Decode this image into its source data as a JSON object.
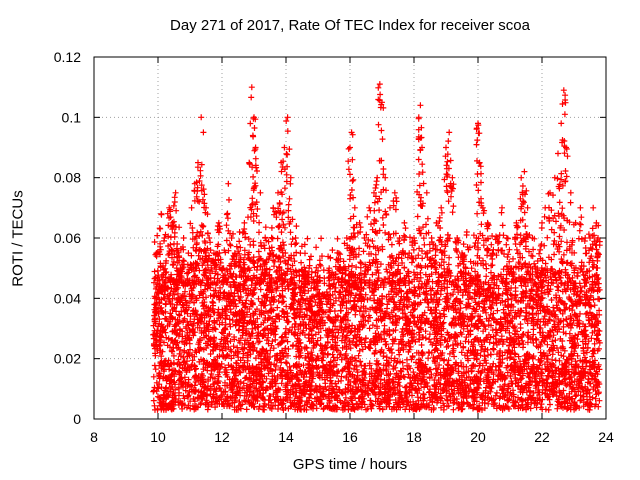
{
  "chart_data": {
    "type": "scatter",
    "title": "Day 271 of 2017, Rate Of TEC Index for receiver scoa",
    "xlabel": "GPS time / hours",
    "ylabel": "ROTI / TECUs",
    "xlim": [
      8,
      24
    ],
    "ylim": [
      0,
      0.12
    ],
    "xticks": [
      "8",
      "10",
      "12",
      "14",
      "16",
      "18",
      "20",
      "22",
      "24"
    ],
    "yticks": [
      "0",
      "0.02",
      "0.04",
      "0.06",
      "0.08",
      "0.1",
      "0.12"
    ],
    "grid": true,
    "marker": "+",
    "color": "#ff0000",
    "series": [
      {
        "x": [
          9.9,
          9.95,
          10.0,
          10.1,
          10.2,
          10.35,
          10.45,
          10.55,
          10.6,
          10.7,
          10.8,
          10.95,
          11.05,
          11.15,
          11.25,
          11.35,
          11.42,
          11.5,
          11.6,
          11.75,
          11.9,
          12.05,
          12.2,
          12.3,
          12.4,
          12.55,
          12.7,
          12.85,
          12.93,
          13.0,
          13.05,
          13.2,
          13.35,
          13.5,
          13.6,
          13.75,
          13.85,
          13.95,
          14.05,
          14.15,
          14.3,
          14.45,
          14.6,
          14.75,
          14.9,
          15.05,
          15.2,
          15.35,
          15.5,
          15.65,
          15.8,
          15.9,
          16.0,
          16.05,
          16.15,
          16.3,
          16.45,
          16.6,
          16.75,
          16.85,
          16.93,
          17.0,
          17.1,
          17.25,
          17.4,
          17.55,
          17.7,
          17.85,
          18.0,
          18.15,
          18.2,
          18.25,
          18.4,
          18.55,
          18.7,
          18.85,
          19.0,
          19.1,
          19.2,
          19.35,
          19.5,
          19.65,
          19.8,
          19.95,
          20.0,
          20.05,
          20.15,
          20.3,
          20.45,
          20.6,
          20.75,
          20.9,
          21.05,
          21.2,
          21.35,
          21.45,
          21.55,
          21.7,
          21.85,
          22.0,
          22.1,
          22.25,
          22.4,
          22.5,
          22.6,
          22.68,
          22.75,
          22.9,
          23.05,
          23.2,
          23.35,
          23.5,
          23.6,
          23.7,
          23.75
        ],
        "y": [
          0.04,
          0.055,
          0.045,
          0.068,
          0.06,
          0.07,
          0.065,
          0.075,
          0.058,
          0.05,
          0.06,
          0.055,
          0.07,
          0.078,
          0.085,
          0.1,
          0.095,
          0.07,
          0.06,
          0.055,
          0.065,
          0.05,
          0.078,
          0.06,
          0.055,
          0.062,
          0.065,
          0.085,
          0.11,
          0.1,
          0.09,
          0.075,
          0.06,
          0.055,
          0.07,
          0.075,
          0.085,
          0.09,
          0.1,
          0.08,
          0.06,
          0.055,
          0.045,
          0.04,
          0.035,
          0.04,
          0.045,
          0.05,
          0.045,
          0.055,
          0.05,
          0.06,
          0.09,
          0.095,
          0.07,
          0.065,
          0.06,
          0.07,
          0.075,
          0.08,
          0.111,
          0.105,
          0.08,
          0.07,
          0.075,
          0.06,
          0.065,
          0.055,
          0.06,
          0.1,
          0.104,
          0.09,
          0.075,
          0.06,
          0.065,
          0.07,
          0.09,
          0.095,
          0.08,
          0.06,
          0.055,
          0.062,
          0.05,
          0.06,
          0.098,
          0.085,
          0.07,
          0.065,
          0.055,
          0.06,
          0.07,
          0.06,
          0.05,
          0.065,
          0.08,
          0.082,
          0.07,
          0.06,
          0.05,
          0.065,
          0.07,
          0.075,
          0.08,
          0.088,
          0.098,
          0.109,
          0.09,
          0.075,
          0.065,
          0.07,
          0.06,
          0.06,
          0.07,
          0.065,
          0.06
        ]
      }
    ],
    "density": {
      "x_start": 9.85,
      "x_end": 23.8,
      "base_range": [
        0.003,
        0.018
      ],
      "mid_range": [
        0.018,
        0.045
      ],
      "upper_range": [
        0.045,
        0.065
      ]
    }
  }
}
